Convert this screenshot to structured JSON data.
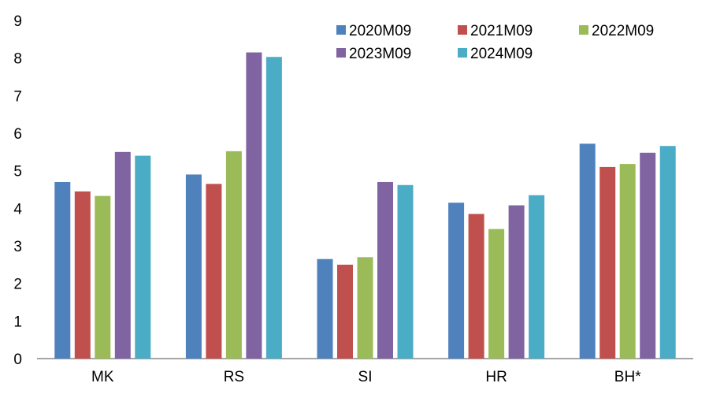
{
  "chart_data": {
    "type": "bar",
    "title": "",
    "xlabel": "",
    "ylabel": "",
    "ylim": [
      0,
      9
    ],
    "yticks": [
      0,
      1,
      2,
      3,
      4,
      5,
      6,
      7,
      8,
      9
    ],
    "grid": false,
    "legend_position": "top-right",
    "categories": [
      "MK",
      "RS",
      "SI",
      "HR",
      "BH*"
    ],
    "series": [
      {
        "name": "2020M09",
        "color": "#4F81BD",
        "values": [
          4.7,
          4.9,
          2.65,
          4.15,
          5.72
        ]
      },
      {
        "name": "2021M09",
        "color": "#C0504D",
        "values": [
          4.45,
          4.65,
          2.5,
          3.85,
          5.1
        ]
      },
      {
        "name": "2022M09",
        "color": "#9BBB59",
        "values": [
          4.33,
          5.52,
          2.7,
          3.45,
          5.18
        ]
      },
      {
        "name": "2023M09",
        "color": "#8064A2",
        "values": [
          5.5,
          8.15,
          4.7,
          4.08,
          5.48
        ]
      },
      {
        "name": "2024M09",
        "color": "#4BACC6",
        "values": [
          5.4,
          8.03,
          4.62,
          4.35,
          5.66
        ]
      }
    ]
  }
}
